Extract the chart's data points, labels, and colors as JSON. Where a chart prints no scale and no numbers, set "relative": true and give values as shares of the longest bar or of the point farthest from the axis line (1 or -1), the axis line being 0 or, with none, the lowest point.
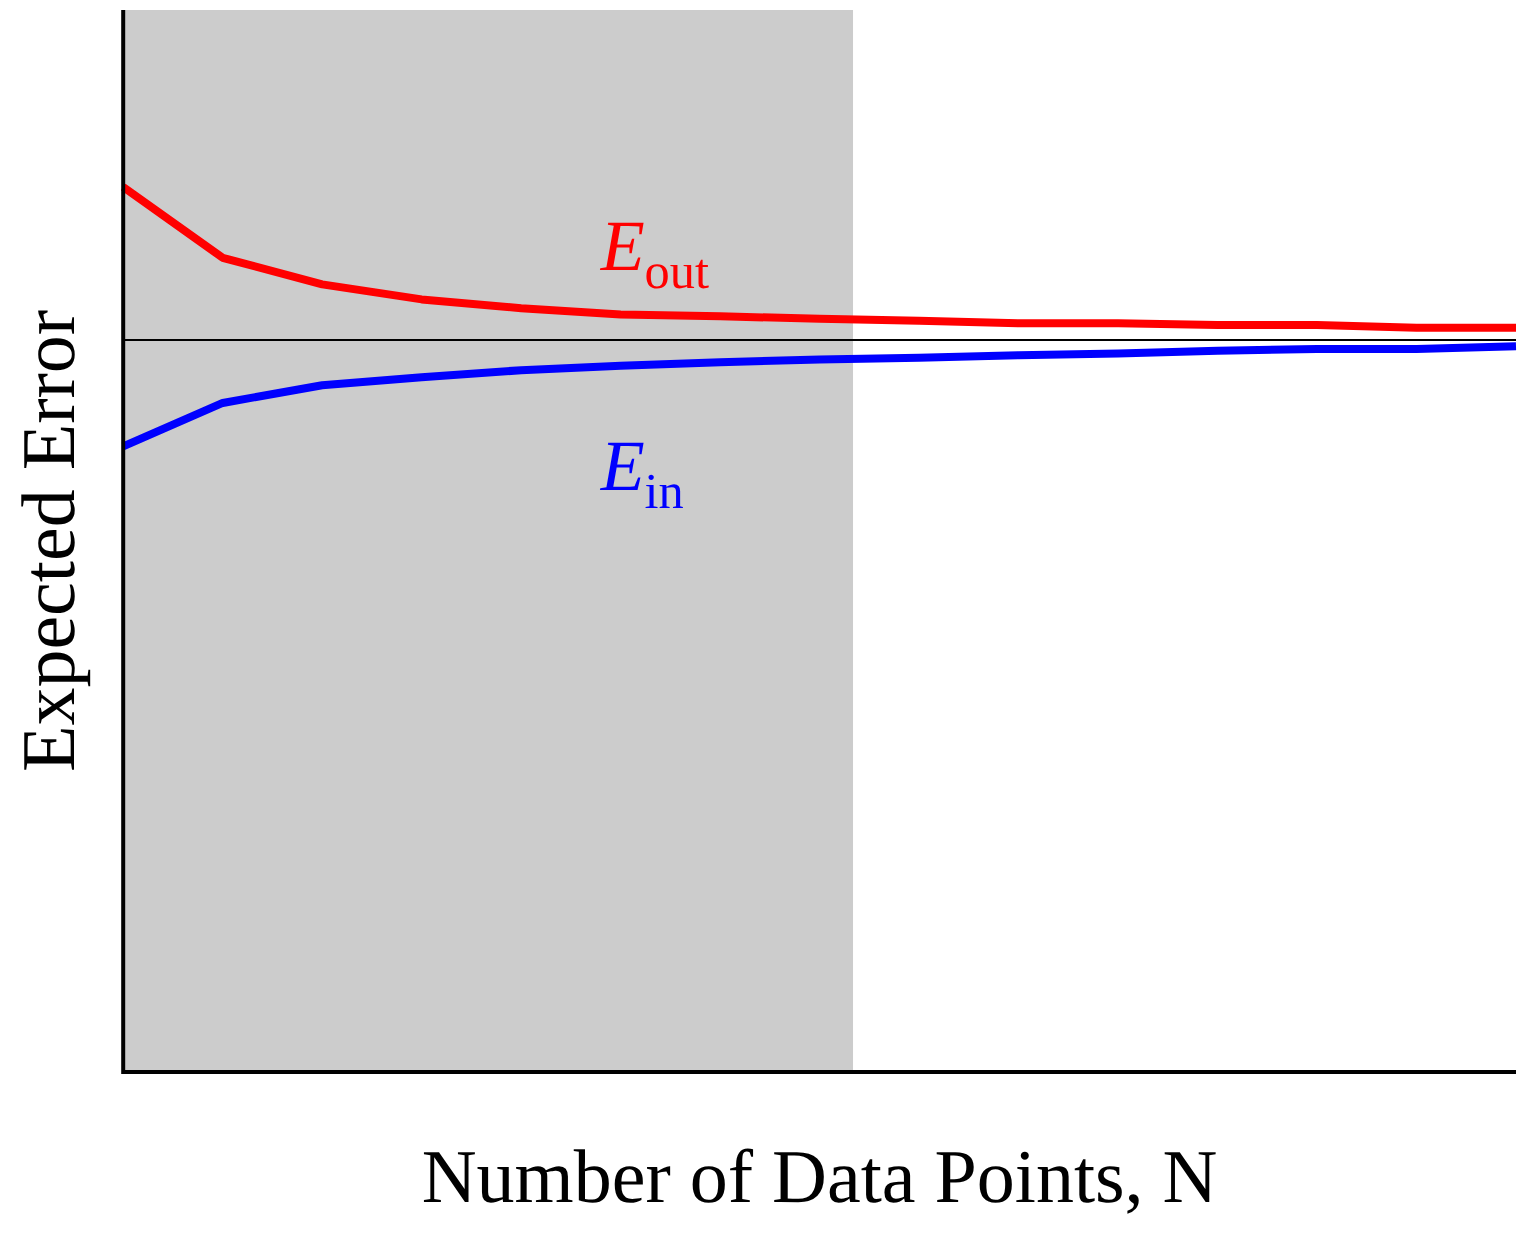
{
  "chart_data": {
    "type": "line",
    "xlabel": "Number of Data Points, N",
    "ylabel": "Expected Error",
    "relative": true,
    "categories": [
      null,
      null,
      null,
      null,
      null,
      null,
      null,
      null,
      null,
      null,
      null,
      null,
      null,
      null,
      null
    ],
    "series": [
      {
        "name": "E$_{out}$",
        "color": "#ff0000",
        "values": [
          1,
          0.92,
          0.89,
          0.873,
          0.863,
          0.856,
          0.854,
          0.851,
          0.849,
          0.846,
          0.846,
          0.844,
          0.844,
          0.841,
          0.841
        ]
      },
      {
        "name": "E$_{in}$",
        "color": "#0000ff",
        "values": [
          0.707,
          0.756,
          0.776,
          0.785,
          0.793,
          0.798,
          0.802,
          0.805,
          0.807,
          0.81,
          0.812,
          0.815,
          0.817,
          0.817,
          0.82
        ]
      }
    ],
    "ref_lines": [
      {
        "axis": "y",
        "value": 0.827,
        "color": "#000000"
      }
    ],
    "grid": false,
    "legend": false,
    "marker": "none",
    "line_style": "solid"
  }
}
